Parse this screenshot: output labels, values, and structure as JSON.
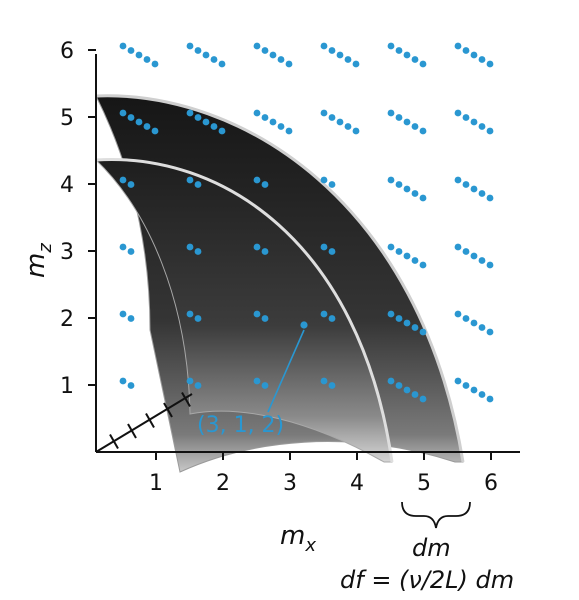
{
  "axes": {
    "z_label": "m",
    "z_label_sub": "z",
    "x_label": "m",
    "x_label_sub": "x",
    "z_ticks": [
      "1",
      "2",
      "3",
      "4",
      "5",
      "6"
    ],
    "x_ticks": [
      "1",
      "2",
      "3",
      "4",
      "5",
      "6"
    ]
  },
  "callout": {
    "label": "(3, 1, 2)"
  },
  "annotation": {
    "dm_label": "dm",
    "formula": "df = (ν/2L) dm"
  },
  "colors": {
    "points": "#2a97d1",
    "shell": "#3a3a3a",
    "axis": "#111111"
  }
}
